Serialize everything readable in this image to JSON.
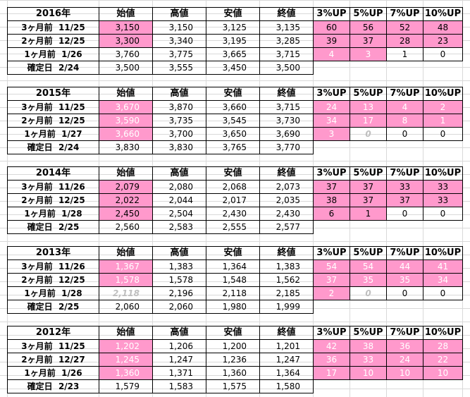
{
  "headers": {
    "open": "始値",
    "high": "高値",
    "low": "安値",
    "close": "終値",
    "up3": "3%UP",
    "up5": "5%UP",
    "up7": "7%UP",
    "up10": "10%UP"
  },
  "blocks": [
    {
      "year": "2016年",
      "rows": [
        {
          "label": "3ヶ月前  11/25",
          "open": "3,150",
          "high": "3,150",
          "low": "3,125",
          "close": "3,135",
          "up3": "60",
          "up5": "56",
          "up7": "52",
          "up10": "48"
        },
        {
          "label": "2ヶ月前  12/25",
          "open": "3,300",
          "high": "3,340",
          "low": "3,195",
          "close": "3,285",
          "up3": "39",
          "up5": "37",
          "up7": "28",
          "up10": "23"
        },
        {
          "label": "1ヶ月前  1/26",
          "open": "3,760",
          "high": "3,775",
          "low": "3,665",
          "close": "3,715",
          "up3": "4",
          "up5": "3",
          "up7": "1",
          "up10": "0"
        },
        {
          "label": "確定日  2/24",
          "open": "3,500",
          "high": "3,555",
          "low": "3,450",
          "close": "3,500"
        }
      ]
    },
    {
      "year": "2015年",
      "rows": [
        {
          "label": "3ヶ月前  11/25",
          "open": "3,670",
          "high": "3,870",
          "low": "3,660",
          "close": "3,715",
          "up3": "24",
          "up5": "13",
          "up7": "4",
          "up10": "2"
        },
        {
          "label": "2ヶ月前  12/25",
          "open": "3,590",
          "high": "3,735",
          "low": "3,545",
          "close": "3,730",
          "up3": "34",
          "up5": "17",
          "up7": "8",
          "up10": "1"
        },
        {
          "label": "1ヶ月前  1/27",
          "open": "3,660",
          "high": "3,700",
          "low": "3,650",
          "close": "3,690",
          "up3": "3",
          "up5": "0",
          "up7": "0",
          "up10": "0"
        },
        {
          "label": "確定日  2/24",
          "open": "3,830",
          "high": "3,830",
          "low": "3,765",
          "close": "3,770"
        }
      ]
    },
    {
      "year": "2014年",
      "rows": [
        {
          "label": "3ヶ月前  11/26",
          "open": "2,079",
          "high": "2,080",
          "low": "2,068",
          "close": "2,073",
          "up3": "37",
          "up5": "37",
          "up7": "33",
          "up10": "33"
        },
        {
          "label": "2ヶ月前  12/25",
          "open": "2,022",
          "high": "2,044",
          "low": "2,017",
          "close": "2,035",
          "up3": "38",
          "up5": "37",
          "up7": "37",
          "up10": "33"
        },
        {
          "label": "1ヶ月前  1/28",
          "open": "2,450",
          "high": "2,504",
          "low": "2,430",
          "close": "2,430",
          "up3": "6",
          "up5": "1",
          "up7": "0",
          "up10": "0"
        },
        {
          "label": "確定日  2/25",
          "open": "2,560",
          "high": "2,583",
          "low": "2,555",
          "close": "2,577"
        }
      ]
    },
    {
      "year": "2013年",
      "rows": [
        {
          "label": "3ヶ月前  11/26",
          "open": "1,367",
          "high": "1,383",
          "low": "1,364",
          "close": "1,383",
          "up3": "54",
          "up5": "54",
          "up7": "44",
          "up10": "41"
        },
        {
          "label": "2ヶ月前  12/25",
          "open": "1,578",
          "high": "1,578",
          "low": "1,548",
          "close": "1,562",
          "up3": "37",
          "up5": "35",
          "up7": "35",
          "up10": "34"
        },
        {
          "label": "1ヶ月前  1/28",
          "open": "2,118",
          "high": "2,196",
          "low": "2,118",
          "close": "2,185",
          "up3": "2",
          "up5": "0",
          "up7": "0",
          "up10": "0"
        },
        {
          "label": "確定日  2/25",
          "open": "2,060",
          "high": "2,060",
          "low": "1,980",
          "close": "1,999"
        }
      ]
    },
    {
      "year": "2012年",
      "rows": [
        {
          "label": "3ヶ月前  11/25",
          "open": "1,202",
          "high": "1,206",
          "low": "1,200",
          "close": "1,201",
          "up3": "42",
          "up5": "38",
          "up7": "36",
          "up10": "28"
        },
        {
          "label": "2ヶ月前  12/27",
          "open": "1,245",
          "high": "1,247",
          "low": "1,236",
          "close": "1,247",
          "up3": "36",
          "up5": "33",
          "up7": "24",
          "up10": "22"
        },
        {
          "label": "1ヶ月前  1/26",
          "open": "1,360",
          "high": "1,371",
          "low": "1,360",
          "close": "1,364",
          "up3": "17",
          "up5": "10",
          "up7": "10",
          "up10": "10"
        },
        {
          "label": "確定日  2/23",
          "open": "1,579",
          "high": "1,583",
          "low": "1,575",
          "close": "1,580"
        }
      ]
    }
  ],
  "colors": {
    "highlight": "#ff99cc",
    "highlight_text": "#ffffff",
    "muted_text": "#bfbfbf",
    "gridline": "#d9d9d9"
  }
}
